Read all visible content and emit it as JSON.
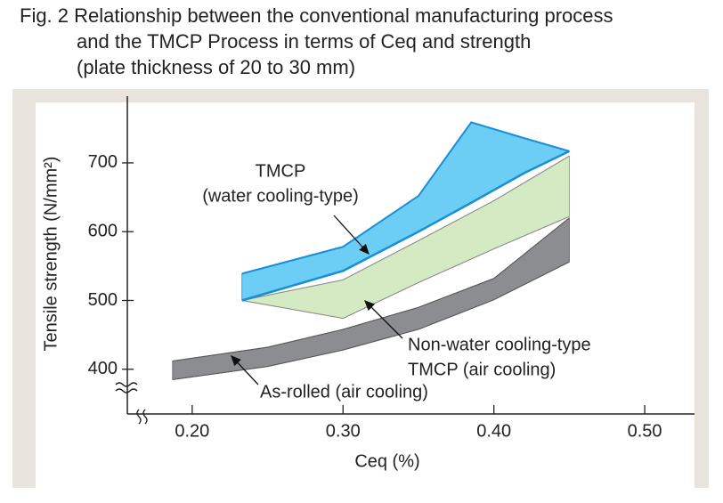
{
  "chart_data": {
    "type": "band",
    "title": [
      "Fig. 2  Relationship between the conventional manufacturing process",
      "and the TMCP  Process in terms of Ceq and strength",
      "(plate thickness of 20 to 30 mm)"
    ],
    "x_label": "Ceq (%)",
    "y_label": "Tensile strength (N/mm²)",
    "xlim": [
      0.157,
      0.533
    ],
    "ylim": [
      335,
      797
    ],
    "xticks": [
      {
        "value": 0.2,
        "label": "0.20"
      },
      {
        "value": 0.3,
        "label": "0.30"
      },
      {
        "value": 0.4,
        "label": "0.40"
      },
      {
        "value": 0.5,
        "label": "0.50"
      }
    ],
    "yticks": [
      400,
      500,
      600,
      700
    ],
    "series": [
      {
        "color": "#8c8d90",
        "edge": "#555555",
        "x": [
          0.187,
          0.25,
          0.3,
          0.35,
          0.4,
          0.45
        ],
        "upper": [
          412,
          432,
          458,
          490,
          532,
          620
        ],
        "lower": [
          385,
          404,
          428,
          458,
          501,
          556
        ]
      },
      {
        "color": "#d3eac2",
        "edge": "#8a8a8a",
        "x": [
          0.233,
          0.3,
          0.35,
          0.4,
          0.45
        ],
        "upper": [
          500,
          530,
          587,
          645,
          710
        ],
        "lower": [
          500,
          474,
          526,
          575,
          622
        ]
      },
      {
        "color": "#6ccdf5",
        "edge": "#1a8fd6",
        "x": [
          0.233,
          0.3,
          0.35,
          0.385,
          0.42,
          0.45
        ],
        "upper": [
          539,
          578,
          652,
          759,
          736,
          717
        ],
        "lower": [
          500,
          543,
          600,
          642,
          685,
          717
        ]
      }
    ],
    "annotations": [
      {
        "lines": [
          "TMCP",
          "(water cooling-type)"
        ]
      },
      {
        "lines": [
          "Non-water cooling-type",
          "TMCP (air cooling)"
        ]
      },
      {
        "lines": [
          "As-rolled (air cooling)"
        ]
      }
    ]
  }
}
